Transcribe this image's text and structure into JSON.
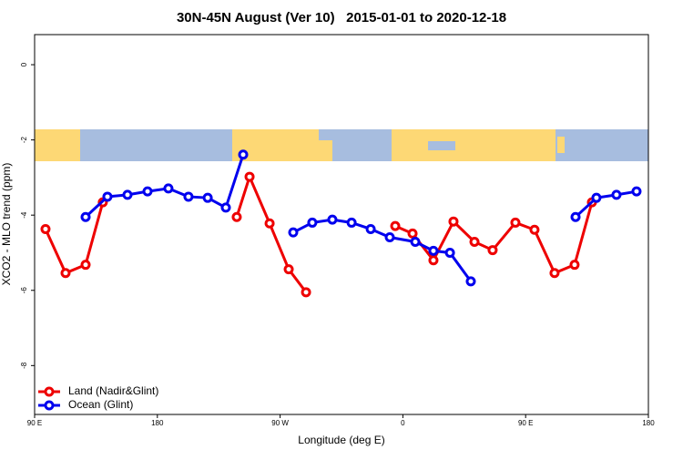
{
  "chart_data": {
    "type": "line",
    "title": "30N-45N August (Ver 10)   2015-01-01 to 2020-12-18",
    "x_label": "Longitude (deg E)",
    "y_label": "XCO2 - MLO trend (ppm)",
    "xlim": [
      90,
      540
    ],
    "xticks": [
      {
        "value": 90,
        "label": "90 E"
      },
      {
        "value": 180,
        "label": "180"
      },
      {
        "value": 270,
        "label": "90 W"
      },
      {
        "value": 360,
        "label": "0"
      },
      {
        "value": 450,
        "label": "90 E"
      },
      {
        "value": 540,
        "label": "180"
      }
    ],
    "ylim": [
      -9.3,
      0.8
    ],
    "yticks": [
      0,
      -2,
      -4,
      -6,
      -8
    ],
    "grid": false,
    "legend": "bottom-left",
    "series": [
      {
        "name": "Land (Nadir&Glint)",
        "color": "#ee0000",
        "x": [
          98,
          112.7,
          127.4,
          140,
          null,
          238.2,
          247.6,
          262.3,
          276.3,
          289,
          null,
          354.4,
          367.1,
          382.4,
          397.1,
          412.5,
          425.8,
          442.5,
          456.5,
          471.2,
          485.9,
          498.6
        ],
        "values": [
          -4.37,
          -5.54,
          -5.32,
          -3.66,
          null,
          -4.05,
          -2.98,
          -4.22,
          -5.44,
          -6.05,
          null,
          -4.29,
          -4.49,
          -5.2,
          -4.17,
          -4.71,
          -4.93,
          -4.2,
          -4.39,
          -5.54,
          -5.32,
          -3.66
        ]
      },
      {
        "name": "Ocean (Glint)",
        "color": "#0000ee",
        "x": [
          127.4,
          143.4,
          158.1,
          172.8,
          188.1,
          202.8,
          216.9,
          230.2,
          242.9,
          null,
          279.6,
          293.6,
          308.3,
          322.4,
          336.4,
          350.4,
          369.1,
          382.4,
          394.5,
          409.8,
          null,
          486.6,
          501.9,
          516.6,
          531.3
        ],
        "values": [
          -4.05,
          -3.51,
          -3.46,
          -3.37,
          -3.29,
          -3.51,
          -3.54,
          -3.8,
          -2.39,
          null,
          -4.46,
          -4.2,
          -4.12,
          -4.2,
          -4.37,
          -4.59,
          -4.71,
          -4.95,
          -5.0,
          -5.76,
          null,
          -4.05,
          -3.54,
          -3.46,
          -3.37
        ]
      }
    ]
  }
}
